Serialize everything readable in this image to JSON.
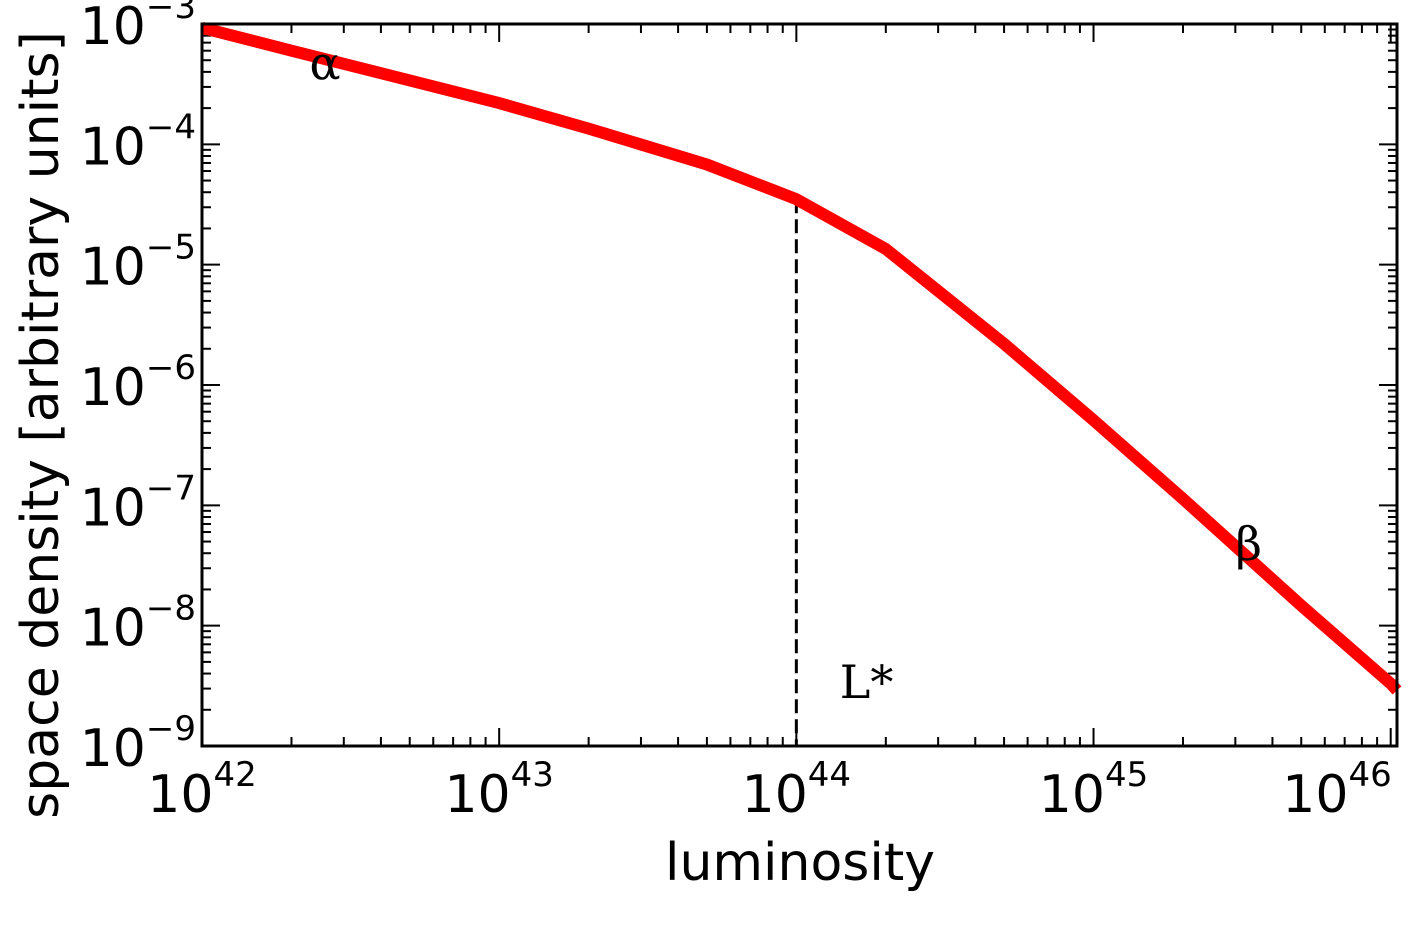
{
  "chart_data": {
    "type": "line",
    "xlabel": "luminosity",
    "ylabel": "space density [arbitrary units]",
    "x_scale": "log",
    "y_scale": "log",
    "xlim": [
      1e+42,
      1.05e+46
    ],
    "ylim": [
      1e-09,
      0.001
    ],
    "x_ticks": [
      {
        "base": "10",
        "exp": "42",
        "value": 1e+42
      },
      {
        "base": "10",
        "exp": "43",
        "value": 1e+43
      },
      {
        "base": "10",
        "exp": "44",
        "value": 1e+44
      },
      {
        "base": "10",
        "exp": "45",
        "value": 1e+45
      },
      {
        "base": "10",
        "exp": "46",
        "value": 1e+46
      }
    ],
    "y_ticks": [
      {
        "base": "10",
        "exp": "−3",
        "value": 0.001
      },
      {
        "base": "10",
        "exp": "−4",
        "value": 0.0001
      },
      {
        "base": "10",
        "exp": "−5",
        "value": 1e-05
      },
      {
        "base": "10",
        "exp": "−6",
        "value": 1e-06
      },
      {
        "base": "10",
        "exp": "−7",
        "value": 1e-07
      },
      {
        "base": "10",
        "exp": "−8",
        "value": 1e-08
      },
      {
        "base": "10",
        "exp": "−9",
        "value": 1e-09
      }
    ],
    "series": [
      {
        "color": "#ff0000",
        "model": "double power law",
        "break_luminosity": 1e+44,
        "x": [
          1e+42,
          2e+42,
          5e+42,
          1e+43,
          2e+43,
          5e+43,
          1e+44,
          2e+44,
          5e+44,
          1e+45,
          2e+45,
          5e+45,
          1e+46,
          1.05e+46
        ],
        "y": [
          0.00093,
          0.0006,
          0.00034,
          0.00022,
          0.000135,
          6.8e-05,
          3.5e-05,
          1.35e-05,
          2.2e-06,
          5.1e-07,
          1.13e-07,
          1.47e-08,
          3.3e-09,
          2.9e-09
        ]
      }
    ],
    "vline": {
      "x": 1e+44,
      "style": "dashed",
      "color": "#000000"
    },
    "annotations": [
      {
        "text": "α",
        "x": 2.3e+42,
        "y": 0.00035
      },
      {
        "text": "β",
        "x": 3e+45,
        "y": 3.5e-08
      },
      {
        "text": "L*",
        "x": 1.4e+44,
        "y": 2.5e-09
      }
    ],
    "grid": false,
    "legend": "none"
  }
}
